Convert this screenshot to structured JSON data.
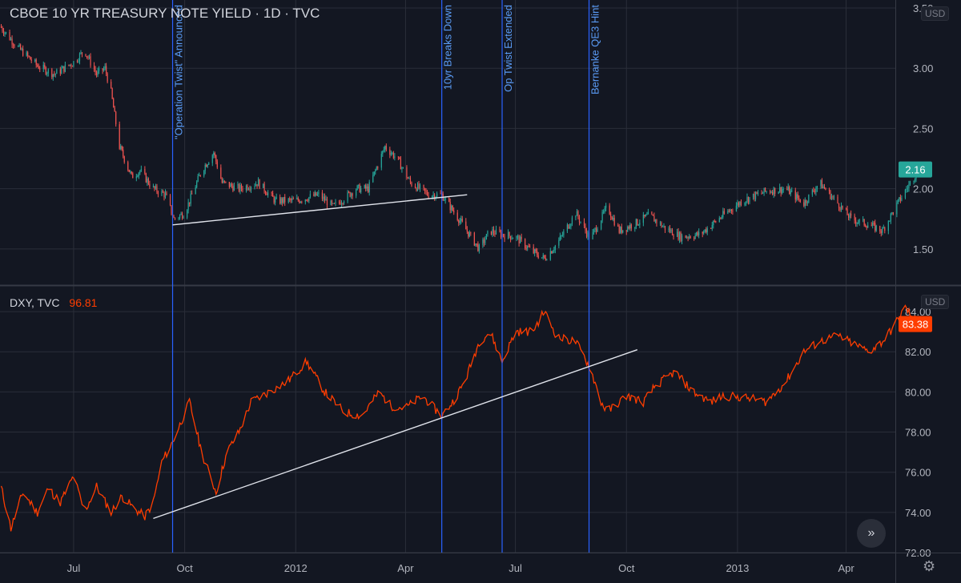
{
  "colors": {
    "background": "#131722",
    "grid": "#2a2e39",
    "text": "#b2b5be",
    "bull": "#26a69a",
    "bear": "#ef5350",
    "dxy_line": "#ff3d00",
    "event_line": "#2962ff",
    "event_label": "#5b9cf6",
    "trend_line": "#e0e3eb"
  },
  "top_pane": {
    "title": "CBOE 10 YR TREASURY NOTE YIELD · 1D · TVC",
    "currency": "USD",
    "last_value": "2.16"
  },
  "bottom_pane": {
    "symbol": "DXY, TVC",
    "header_value": "96.81",
    "currency": "USD",
    "last_value": "83.38"
  },
  "icons": {
    "scroll": "double-chevron-right-icon",
    "settings": "gear-icon"
  },
  "chart_data": [
    {
      "type": "candlestick",
      "title": "CBOE 10 YR TREASURY NOTE YIELD · 1D · TVC",
      "x_start": "2011-05-01",
      "x_end": "2013-05-31",
      "x_ticks": [
        "Jul",
        "Oct",
        "2012",
        "Apr",
        "Jul",
        "Oct",
        "2013",
        "Apr"
      ],
      "y_ticks": [
        "1.50",
        "2.00",
        "2.50",
        "3.00",
        "3.50"
      ],
      "ylim": [
        1.2,
        3.5
      ],
      "series": [
        {
          "points": [
            [
              "2011-05-01",
              3.35
            ],
            [
              "2011-05-15",
              3.18
            ],
            [
              "2011-06-01",
              3.02
            ],
            [
              "2011-06-15",
              2.95
            ],
            [
              "2011-07-01",
              3.05
            ],
            [
              "2011-07-10",
              3.15
            ],
            [
              "2011-07-20",
              2.95
            ],
            [
              "2011-07-27",
              3.0
            ],
            [
              "2011-08-01",
              2.8
            ],
            [
              "2011-08-08",
              2.35
            ],
            [
              "2011-08-18",
              2.1
            ],
            [
              "2011-08-25",
              2.15
            ],
            [
              "2011-09-05",
              2.0
            ],
            [
              "2011-09-15",
              1.95
            ],
            [
              "2011-09-22",
              1.75
            ],
            [
              "2011-10-01",
              1.8
            ],
            [
              "2011-10-15",
              2.15
            ],
            [
              "2011-10-25",
              2.3
            ],
            [
              "2011-11-01",
              2.05
            ],
            [
              "2011-11-15",
              2.0
            ],
            [
              "2011-12-01",
              2.05
            ],
            [
              "2011-12-15",
              1.9
            ],
            [
              "2012-01-01",
              1.9
            ],
            [
              "2012-01-20",
              1.95
            ],
            [
              "2012-02-01",
              1.85
            ],
            [
              "2012-02-20",
              2.0
            ],
            [
              "2012-03-01",
              2.0
            ],
            [
              "2012-03-15",
              2.35
            ],
            [
              "2012-03-25",
              2.25
            ],
            [
              "2012-04-05",
              2.05
            ],
            [
              "2012-04-20",
              1.95
            ],
            [
              "2012-05-01",
              1.95
            ],
            [
              "2012-05-15",
              1.75
            ],
            [
              "2012-06-01",
              1.5
            ],
            [
              "2012-06-10",
              1.65
            ],
            [
              "2012-06-20",
              1.62
            ],
            [
              "2012-07-01",
              1.6
            ],
            [
              "2012-07-15",
              1.48
            ],
            [
              "2012-07-25",
              1.42
            ],
            [
              "2012-08-05",
              1.55
            ],
            [
              "2012-08-20",
              1.8
            ],
            [
              "2012-09-01",
              1.58
            ],
            [
              "2012-09-15",
              1.85
            ],
            [
              "2012-09-25",
              1.65
            ],
            [
              "2012-10-10",
              1.72
            ],
            [
              "2012-10-20",
              1.78
            ],
            [
              "2012-11-01",
              1.68
            ],
            [
              "2012-11-15",
              1.6
            ],
            [
              "2012-12-01",
              1.62
            ],
            [
              "2012-12-20",
              1.78
            ],
            [
              "2013-01-05",
              1.9
            ],
            [
              "2013-01-25",
              1.98
            ],
            [
              "2013-02-10",
              2.0
            ],
            [
              "2013-02-25",
              1.88
            ],
            [
              "2013-03-10",
              2.05
            ],
            [
              "2013-03-25",
              1.88
            ],
            [
              "2013-04-05",
              1.75
            ],
            [
              "2013-04-20",
              1.7
            ],
            [
              "2013-05-01",
              1.65
            ],
            [
              "2013-05-15",
              1.9
            ],
            [
              "2013-05-31",
              2.16
            ]
          ]
        }
      ],
      "events": [
        {
          "date": "2011-09-21",
          "label": "\"Operation Twist\" Announced"
        },
        {
          "date": "2012-05-01",
          "label": "10yr Breaks Down"
        },
        {
          "date": "2012-06-20",
          "label": "Op Twist Extended"
        },
        {
          "date": "2012-08-31",
          "label": "Bernanke QE3 Hint"
        }
      ],
      "trend_line": [
        [
          "2011-09-21",
          1.7
        ],
        [
          "2012-05-22",
          1.95
        ]
      ]
    },
    {
      "type": "line",
      "title": "DXY, TVC",
      "x_start": "2011-05-01",
      "x_end": "2013-05-31",
      "y_ticks": [
        "72.00",
        "74.00",
        "76.00",
        "78.00",
        "80.00",
        "82.00",
        "84.00"
      ],
      "ylim": [
        72,
        84.8
      ],
      "series": [
        {
          "name": "DXY",
          "points": [
            [
              "2011-05-01",
              75.5
            ],
            [
              "2011-05-10",
              73.2
            ],
            [
              "2011-05-20",
              75.0
            ],
            [
              "2011-06-01",
              74.0
            ],
            [
              "2011-06-10",
              75.2
            ],
            [
              "2011-06-20",
              74.5
            ],
            [
              "2011-07-01",
              75.8
            ],
            [
              "2011-07-10",
              74.0
            ],
            [
              "2011-07-20",
              75.3
            ],
            [
              "2011-08-01",
              74.0
            ],
            [
              "2011-08-10",
              74.8
            ],
            [
              "2011-08-20",
              74.2
            ],
            [
              "2011-08-29",
              73.8
            ],
            [
              "2011-09-05",
              74.5
            ],
            [
              "2011-09-12",
              76.5
            ],
            [
              "2011-09-21",
              77.5
            ],
            [
              "2011-09-28",
              78.5
            ],
            [
              "2011-10-05",
              79.5
            ],
            [
              "2011-10-15",
              77.0
            ],
            [
              "2011-10-27",
              75.0
            ],
            [
              "2011-11-05",
              77.0
            ],
            [
              "2011-11-15",
              78.0
            ],
            [
              "2011-11-25",
              79.5
            ],
            [
              "2011-12-10",
              80.0
            ],
            [
              "2011-12-25",
              80.5
            ],
            [
              "2012-01-10",
              81.5
            ],
            [
              "2012-01-25",
              80.0
            ],
            [
              "2012-02-10",
              79.0
            ],
            [
              "2012-02-25",
              78.8
            ],
            [
              "2012-03-10",
              80.0
            ],
            [
              "2012-03-20",
              79.3
            ],
            [
              "2012-04-01",
              79.2
            ],
            [
              "2012-04-15",
              79.8
            ],
            [
              "2012-05-01",
              78.8
            ],
            [
              "2012-05-10",
              79.5
            ],
            [
              "2012-05-20",
              80.5
            ],
            [
              "2012-06-01",
              82.5
            ],
            [
              "2012-06-10",
              83.0
            ],
            [
              "2012-06-20",
              81.5
            ],
            [
              "2012-07-01",
              83.0
            ],
            [
              "2012-07-15",
              83.0
            ],
            [
              "2012-07-25",
              84.0
            ],
            [
              "2012-08-05",
              82.7
            ],
            [
              "2012-08-20",
              82.5
            ],
            [
              "2012-09-01",
              81.2
            ],
            [
              "2012-09-10",
              79.5
            ],
            [
              "2012-09-15",
              79.0
            ],
            [
              "2012-10-01",
              79.8
            ],
            [
              "2012-10-15",
              79.5
            ],
            [
              "2012-10-25",
              80.3
            ],
            [
              "2012-11-10",
              81.0
            ],
            [
              "2012-11-25",
              80.0
            ],
            [
              "2012-12-10",
              79.5
            ],
            [
              "2012-12-20",
              79.8
            ],
            [
              "2013-01-10",
              79.7
            ],
            [
              "2013-01-25",
              79.5
            ],
            [
              "2013-02-10",
              80.5
            ],
            [
              "2013-02-25",
              82.0
            ],
            [
              "2013-03-10",
              82.5
            ],
            [
              "2013-03-25",
              82.8
            ],
            [
              "2013-04-10",
              82.3
            ],
            [
              "2013-04-20",
              82.0
            ],
            [
              "2013-05-01",
              82.5
            ],
            [
              "2013-05-10",
              83.2
            ],
            [
              "2013-05-20",
              84.2
            ],
            [
              "2013-05-31",
              83.38
            ]
          ]
        }
      ],
      "trend_line": [
        [
          "2011-09-05",
          73.7
        ],
        [
          "2012-10-10",
          82.1
        ]
      ]
    }
  ]
}
